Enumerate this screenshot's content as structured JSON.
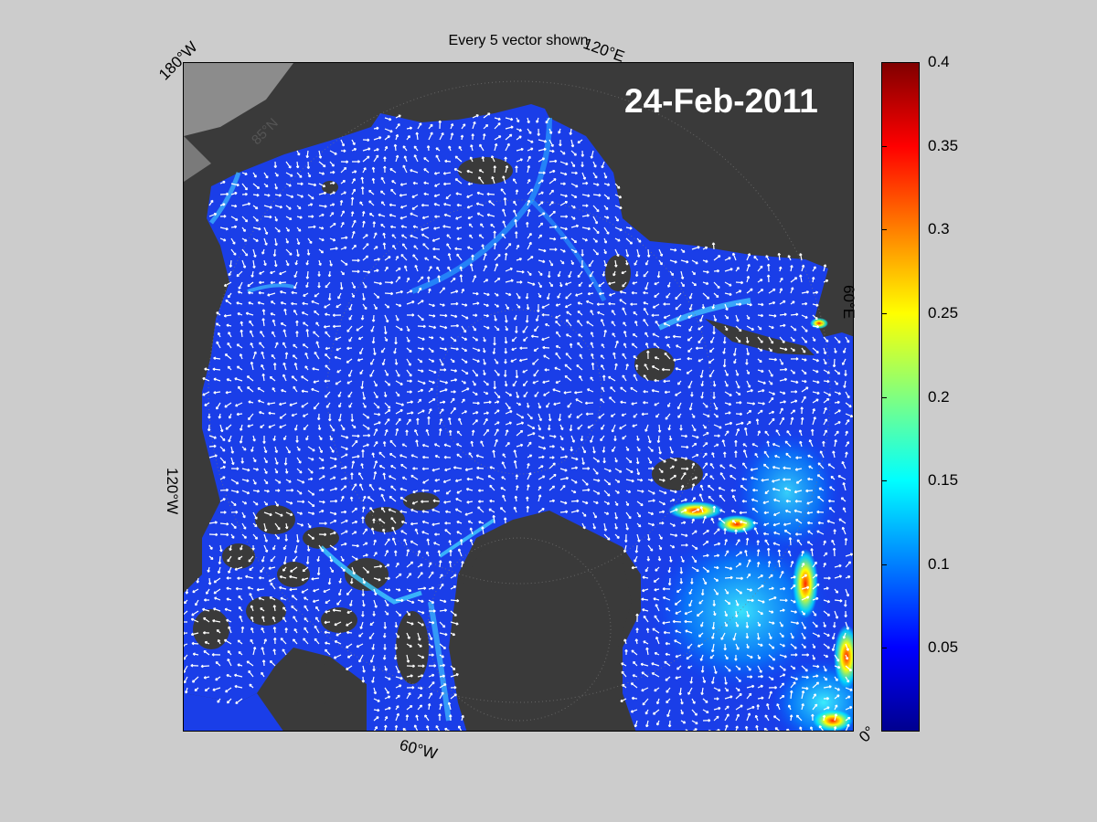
{
  "title": "Every 5 vector shown",
  "date": "24-Feb-2011",
  "map": {
    "projection": "polar stereographic (Arctic)",
    "longitude_labels": [
      "180°W",
      "120°E",
      "60°E",
      "0°",
      "60°W",
      "120°W"
    ],
    "latitude_labels": [
      "85°N"
    ],
    "colors": {
      "land": "#3a3a3a",
      "masked_land": "#8c8c8c",
      "vectors": "#ffffff",
      "graticule": "#6a6a6a"
    }
  },
  "colorbar": {
    "colormap": "jet",
    "range": [
      0,
      0.4
    ],
    "tick_labels": [
      "0.4",
      "0.35",
      "0.3",
      "0.25",
      "0.2",
      "0.15",
      "0.1",
      "0.05"
    ],
    "tick_values": [
      0.4,
      0.35,
      0.3,
      0.25,
      0.2,
      0.15,
      0.1,
      0.05
    ]
  }
}
